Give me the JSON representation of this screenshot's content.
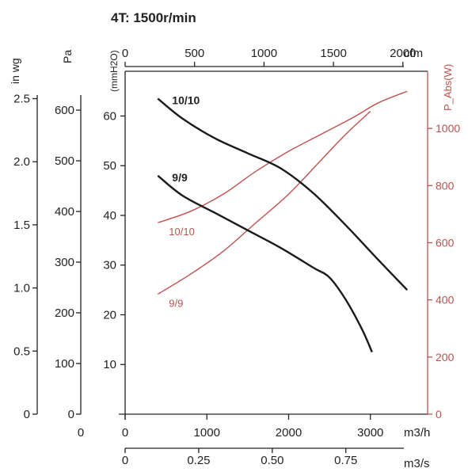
{
  "chart_data": {
    "type": "line",
    "title": "4T: 1500r/min",
    "x": {
      "bottom_label": "m3/h",
      "bottom_ticks": [
        0,
        1000,
        2000,
        3000
      ],
      "bottom_range": [
        0,
        3700
      ],
      "cfm_label": "cfm",
      "cfm_ticks": [
        0,
        500,
        1000,
        1500,
        2000
      ],
      "m3s_label": "m3/s",
      "m3s_ticks": [
        "0",
        "0.25",
        "0.50",
        "0.75"
      ],
      "m3s_values": [
        0,
        0.25,
        0.5,
        0.75
      ]
    },
    "y_pressure": {
      "label": "(mmH2O)",
      "ticks": [
        10,
        20,
        30,
        40,
        50,
        60
      ],
      "range": [
        0,
        69
      ]
    },
    "y_pa": {
      "label": "Pa",
      "ticks": [
        0,
        100,
        200,
        300,
        400,
        500,
        600
      ],
      "origin_label": "0"
    },
    "y_inwg": {
      "label": "in wg",
      "ticks": [
        "0",
        "0.5",
        "1.0",
        "1.5",
        "2.0",
        "2.5"
      ],
      "values": [
        0,
        0.5,
        1.0,
        1.5,
        2.0,
        2.5
      ]
    },
    "y_power": {
      "label": "P_Abs(W)",
      "ticks": [
        0,
        200,
        400,
        600,
        800,
        1000
      ],
      "range": [
        0,
        1200
      ]
    },
    "pressure_curves": [
      {
        "name": "10/10",
        "points": [
          [
            400,
            63.5
          ],
          [
            700,
            59.5
          ],
          [
            1100,
            55.5
          ],
          [
            1500,
            52.5
          ],
          [
            1900,
            49.5
          ],
          [
            2300,
            44.5
          ],
          [
            2700,
            38
          ],
          [
            3100,
            31
          ],
          [
            3450,
            25
          ]
        ]
      },
      {
        "name": "9/9",
        "points": [
          [
            400,
            48
          ],
          [
            700,
            44
          ],
          [
            1100,
            40.5
          ],
          [
            1500,
            37
          ],
          [
            1900,
            33.5
          ],
          [
            2300,
            29.5
          ],
          [
            2500,
            27.5
          ],
          [
            2700,
            23
          ],
          [
            2900,
            17
          ],
          [
            3020,
            12.5
          ]
        ]
      }
    ],
    "power_curves": [
      {
        "name": "10/10",
        "points": [
          [
            400,
            670
          ],
          [
            800,
            710
          ],
          [
            1200,
            770
          ],
          [
            1600,
            850
          ],
          [
            2000,
            920
          ],
          [
            2400,
            980
          ],
          [
            2800,
            1040
          ],
          [
            3100,
            1090
          ],
          [
            3450,
            1130
          ]
        ]
      },
      {
        "name": "9/9",
        "points": [
          [
            400,
            420
          ],
          [
            800,
            490
          ],
          [
            1200,
            570
          ],
          [
            1600,
            670
          ],
          [
            2000,
            770
          ],
          [
            2400,
            890
          ],
          [
            2700,
            980
          ],
          [
            3000,
            1060
          ]
        ]
      }
    ]
  }
}
